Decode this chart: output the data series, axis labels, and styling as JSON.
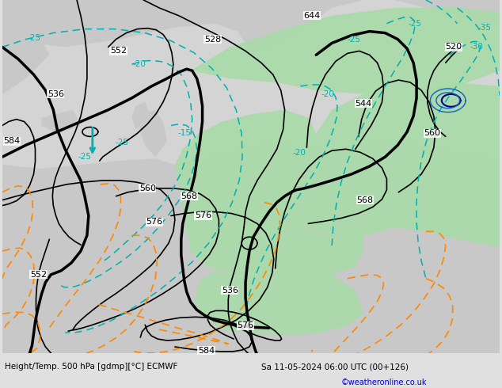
{
  "title_left": "Height/Temp. 500 hPa [gdmp][°C] ECMWF",
  "title_right": "Sa 11-05-2024 06:00 UTC (00+126)",
  "credit": "©weatheronline.co.uk",
  "bg_ocean": "#d8d8d8",
  "bg_land": "#c8c8c8",
  "green_fill": "#b8e8b0",
  "figsize": [
    6.34,
    4.9
  ],
  "dpi": 100,
  "xlim": [
    0,
    634
  ],
  "ylim": [
    0,
    450
  ]
}
